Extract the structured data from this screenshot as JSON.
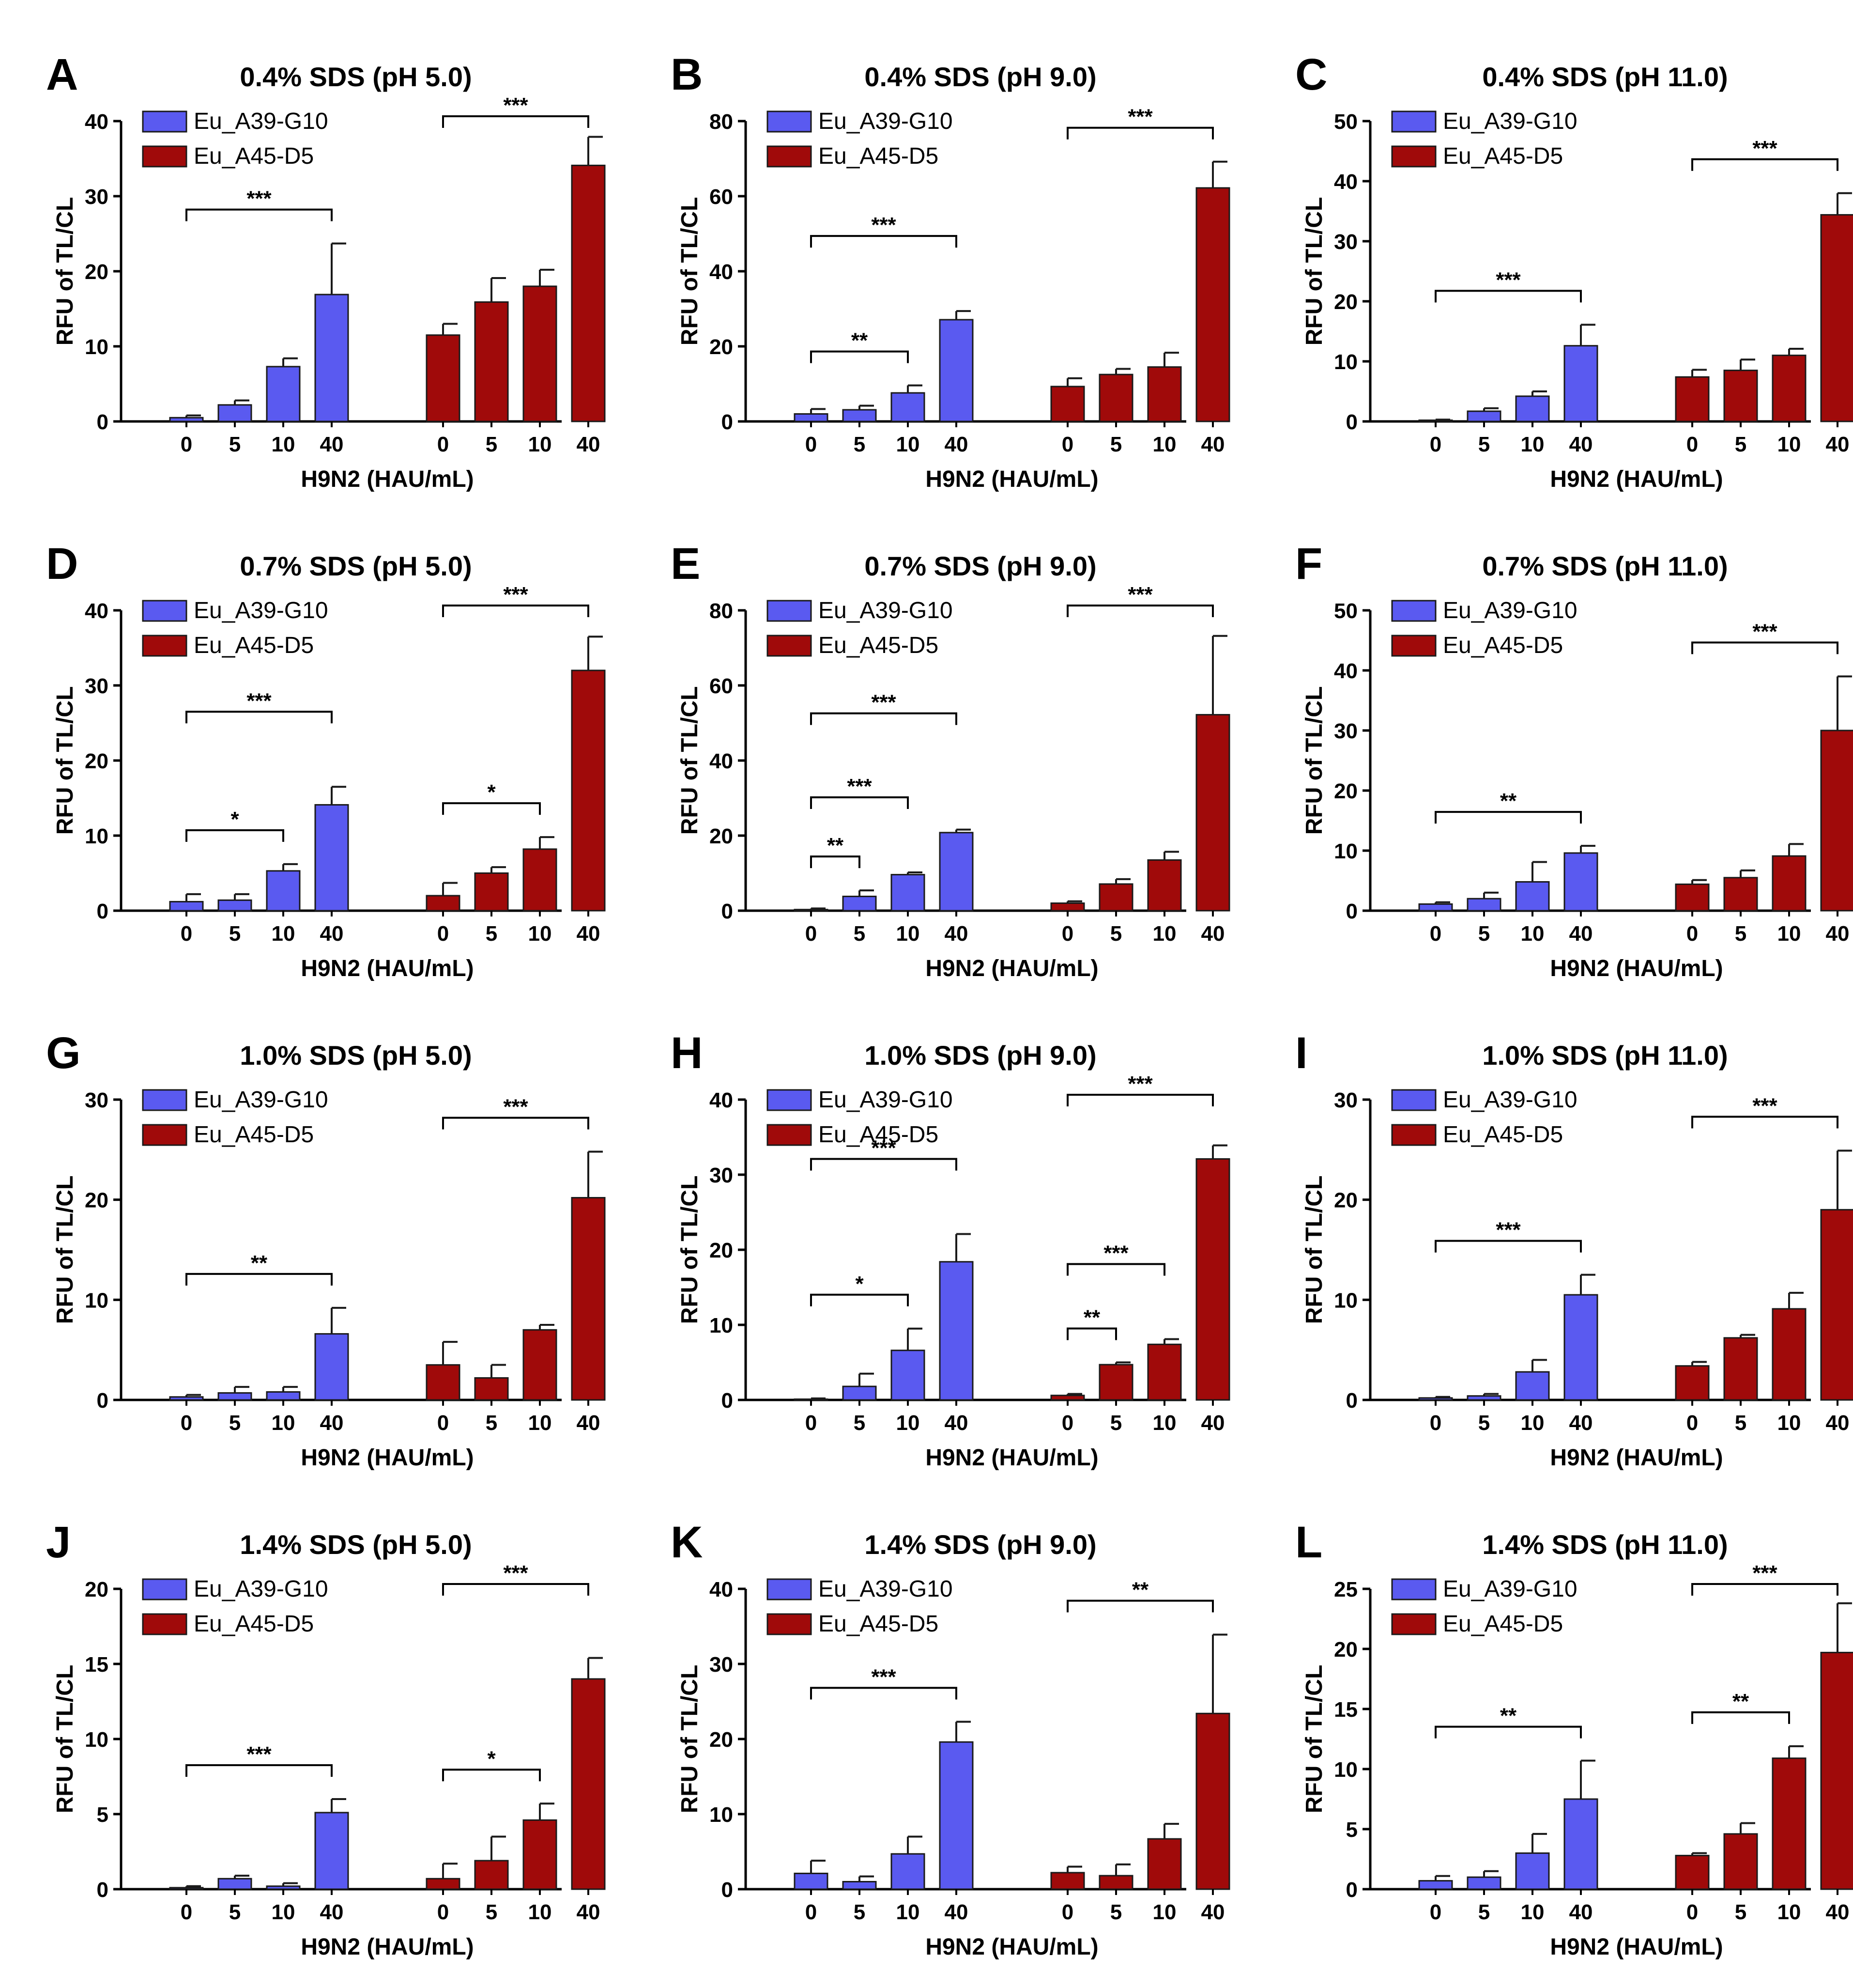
{
  "colors": {
    "eu_a39": "#5a5af0",
    "eu_a45": "#a00a0a",
    "axis": "#000000",
    "edge": "#1a1a1a"
  },
  "chart_data": [
    {
      "type": "bar",
      "panel": "A",
      "title": "0.4% SDS (pH 5.0)",
      "xlabel": "H9N2 (HAU/mL)",
      "ylabel": "RFU of TL/CL",
      "ylim": [
        0,
        40
      ],
      "yticks": [
        "0",
        "10",
        "20",
        "30",
        "40"
      ],
      "categories": [
        "0",
        "5",
        "10",
        "40"
      ],
      "series": [
        {
          "name": "Eu_A39-G10",
          "color": "#5a5af0",
          "values": [
            0.5,
            2.2,
            7.3,
            16.9
          ],
          "errors": [
            0.3,
            0.6,
            1.1,
            6.8
          ]
        },
        {
          "name": "Eu_A45-D5",
          "color": "#a00a0a",
          "values": [
            11.5,
            15.9,
            18.0,
            34.1
          ],
          "errors": [
            1.5,
            3.2,
            2.2,
            3.8
          ]
        }
      ],
      "significance": [
        {
          "series": 0,
          "from": 0,
          "to": 3,
          "label": "***"
        },
        {
          "series": 1,
          "from": 0,
          "to": 3,
          "label": "***"
        }
      ]
    },
    {
      "type": "bar",
      "panel": "B",
      "title": "0.4% SDS (pH 9.0)",
      "xlabel": "H9N2 (HAU/mL)",
      "ylabel": "RFU of TL/CL",
      "ylim": [
        0,
        80
      ],
      "yticks": [
        "0",
        "20",
        "40",
        "60",
        "80"
      ],
      "categories": [
        "0",
        "5",
        "10",
        "40"
      ],
      "series": [
        {
          "name": "Eu_A39-G10",
          "color": "#5a5af0",
          "values": [
            2.0,
            3.1,
            7.6,
            27.1
          ],
          "errors": [
            1.3,
            1.1,
            2.0,
            2.3
          ]
        },
        {
          "name": "Eu_A45-D5",
          "color": "#a00a0a",
          "values": [
            9.3,
            12.5,
            14.5,
            62.2
          ],
          "errors": [
            2.2,
            1.5,
            3.8,
            7.0
          ]
        }
      ],
      "significance": [
        {
          "series": 0,
          "from": 0,
          "to": 2,
          "label": "**"
        },
        {
          "series": 0,
          "from": 0,
          "to": 3,
          "label": "***"
        },
        {
          "series": 1,
          "from": 0,
          "to": 3,
          "label": "***"
        }
      ]
    },
    {
      "type": "bar",
      "panel": "C",
      "title": "0.4% SDS (pH 11.0)",
      "xlabel": "H9N2 (HAU/mL)",
      "ylabel": "RFU of TL/CL",
      "ylim": [
        0,
        50
      ],
      "yticks": [
        "0",
        "10",
        "20",
        "30",
        "40",
        "50"
      ],
      "categories": [
        "0",
        "5",
        "10",
        "40"
      ],
      "series": [
        {
          "name": "Eu_A39-G10",
          "color": "#5a5af0",
          "values": [
            0.2,
            1.7,
            4.2,
            12.6
          ],
          "errors": [
            0.1,
            0.5,
            0.8,
            3.5
          ]
        },
        {
          "name": "Eu_A45-D5",
          "color": "#a00a0a",
          "values": [
            7.4,
            8.5,
            11.0,
            34.4
          ],
          "errors": [
            1.2,
            1.8,
            1.1,
            3.6
          ]
        }
      ],
      "significance": [
        {
          "series": 0,
          "from": 0,
          "to": 3,
          "label": "***"
        },
        {
          "series": 1,
          "from": 0,
          "to": 3,
          "label": "***"
        }
      ]
    },
    {
      "type": "bar",
      "panel": "D",
      "title": "0.7% SDS (pH 5.0)",
      "xlabel": "H9N2 (HAU/mL)",
      "ylabel": "RFU of TL/CL",
      "ylim": [
        0,
        40
      ],
      "yticks": [
        "0",
        "10",
        "20",
        "30",
        "40"
      ],
      "categories": [
        "0",
        "5",
        "10",
        "40"
      ],
      "series": [
        {
          "name": "Eu_A39-G10",
          "color": "#5a5af0",
          "values": [
            1.2,
            1.4,
            5.3,
            14.1
          ],
          "errors": [
            1.0,
            0.8,
            0.9,
            2.4
          ]
        },
        {
          "name": "Eu_A45-D5",
          "color": "#a00a0a",
          "values": [
            2.0,
            5.0,
            8.2,
            32.0
          ],
          "errors": [
            1.7,
            0.8,
            1.6,
            4.5
          ]
        }
      ],
      "significance": [
        {
          "series": 0,
          "from": 0,
          "to": 2,
          "label": "*"
        },
        {
          "series": 0,
          "from": 0,
          "to": 3,
          "label": "***"
        },
        {
          "series": 1,
          "from": 0,
          "to": 2,
          "label": "*"
        },
        {
          "series": 1,
          "from": 0,
          "to": 3,
          "label": "***"
        }
      ]
    },
    {
      "type": "bar",
      "panel": "E",
      "title": "0.7% SDS (pH 9.0)",
      "xlabel": "H9N2 (HAU/mL)",
      "ylabel": "RFU of TL/CL",
      "ylim": [
        0,
        80
      ],
      "yticks": [
        "0",
        "20",
        "40",
        "60",
        "80"
      ],
      "categories": [
        "0",
        "5",
        "10",
        "40"
      ],
      "series": [
        {
          "name": "Eu_A39-G10",
          "color": "#5a5af0",
          "values": [
            0.3,
            3.8,
            9.6,
            20.8
          ],
          "errors": [
            0.3,
            1.6,
            0.6,
            0.8
          ]
        },
        {
          "name": "Eu_A45-D5",
          "color": "#a00a0a",
          "values": [
            2.0,
            7.1,
            13.5,
            52.2
          ],
          "errors": [
            0.5,
            1.3,
            2.2,
            21.0
          ]
        }
      ],
      "significance": [
        {
          "series": 0,
          "from": 0,
          "to": 1,
          "label": "**"
        },
        {
          "series": 0,
          "from": 0,
          "to": 2,
          "label": "***"
        },
        {
          "series": 0,
          "from": 0,
          "to": 3,
          "label": "***"
        },
        {
          "series": 1,
          "from": 0,
          "to": 3,
          "label": "***"
        }
      ]
    },
    {
      "type": "bar",
      "panel": "F",
      "title": "0.7% SDS (pH 11.0)",
      "xlabel": "H9N2 (HAU/mL)",
      "ylabel": "RFU of TL/CL",
      "ylim": [
        0,
        50
      ],
      "yticks": [
        "0",
        "10",
        "20",
        "30",
        "40",
        "50"
      ],
      "categories": [
        "0",
        "5",
        "10",
        "40"
      ],
      "series": [
        {
          "name": "Eu_A39-G10",
          "color": "#5a5af0",
          "values": [
            1.1,
            2.0,
            4.8,
            9.6
          ],
          "errors": [
            0.3,
            1.0,
            3.3,
            1.2
          ]
        },
        {
          "name": "Eu_A45-D5",
          "color": "#a00a0a",
          "values": [
            4.4,
            5.5,
            9.1,
            30.0
          ],
          "errors": [
            0.7,
            1.2,
            2.0,
            9.0
          ]
        }
      ],
      "significance": [
        {
          "series": 0,
          "from": 0,
          "to": 3,
          "label": "**"
        },
        {
          "series": 1,
          "from": 0,
          "to": 3,
          "label": "***"
        }
      ]
    },
    {
      "type": "bar",
      "panel": "G",
      "title": "1.0% SDS (pH 5.0)",
      "xlabel": "H9N2 (HAU/mL)",
      "ylabel": "RFU of TL/CL",
      "ylim": [
        0,
        30
      ],
      "yticks": [
        "0",
        "10",
        "20",
        "30"
      ],
      "categories": [
        "0",
        "5",
        "10",
        "40"
      ],
      "series": [
        {
          "name": "Eu_A39-G10",
          "color": "#5a5af0",
          "values": [
            0.3,
            0.7,
            0.8,
            6.6
          ],
          "errors": [
            0.2,
            0.6,
            0.5,
            2.6
          ]
        },
        {
          "name": "Eu_A45-D5",
          "color": "#a00a0a",
          "values": [
            3.5,
            2.2,
            7.0,
            20.2
          ],
          "errors": [
            2.3,
            1.3,
            0.5,
            4.6
          ]
        }
      ],
      "significance": [
        {
          "series": 0,
          "from": 0,
          "to": 3,
          "label": "**"
        },
        {
          "series": 1,
          "from": 0,
          "to": 3,
          "label": "***"
        }
      ]
    },
    {
      "type": "bar",
      "panel": "H",
      "title": "1.0% SDS (pH 9.0)",
      "xlabel": "H9N2 (HAU/mL)",
      "ylabel": "RFU of TL/CL",
      "ylim": [
        0,
        40
      ],
      "yticks": [
        "0",
        "10",
        "20",
        "30",
        "40"
      ],
      "categories": [
        "0",
        "5",
        "10",
        "40"
      ],
      "series": [
        {
          "name": "Eu_A39-G10",
          "color": "#5a5af0",
          "values": [
            0.1,
            1.8,
            6.6,
            18.4
          ],
          "errors": [
            0.1,
            1.7,
            2.9,
            3.7
          ]
        },
        {
          "name": "Eu_A45-D5",
          "color": "#a00a0a",
          "values": [
            0.6,
            4.7,
            7.4,
            32.1
          ],
          "errors": [
            0.2,
            0.3,
            0.7,
            1.8
          ]
        }
      ],
      "significance": [
        {
          "series": 0,
          "from": 0,
          "to": 2,
          "label": "*"
        },
        {
          "series": 0,
          "from": 0,
          "to": 3,
          "label": "***"
        },
        {
          "series": 1,
          "from": 0,
          "to": 1,
          "label": "**"
        },
        {
          "series": 1,
          "from": 0,
          "to": 2,
          "label": "***"
        },
        {
          "series": 1,
          "from": 0,
          "to": 3,
          "label": "***"
        }
      ]
    },
    {
      "type": "bar",
      "panel": "I",
      "title": "1.0% SDS (pH 11.0)",
      "xlabel": "H9N2 (HAU/mL)",
      "ylabel": "RFU of TL/CL",
      "ylim": [
        0,
        30
      ],
      "yticks": [
        "0",
        "10",
        "20",
        "30"
      ],
      "categories": [
        "0",
        "5",
        "10",
        "40"
      ],
      "series": [
        {
          "name": "Eu_A39-G10",
          "color": "#5a5af0",
          "values": [
            0.2,
            0.4,
            2.8,
            10.5
          ],
          "errors": [
            0.1,
            0.2,
            1.2,
            2.0
          ]
        },
        {
          "name": "Eu_A45-D5",
          "color": "#a00a0a",
          "values": [
            3.4,
            6.2,
            9.1,
            19.0
          ],
          "errors": [
            0.4,
            0.3,
            1.6,
            5.9
          ]
        }
      ],
      "significance": [
        {
          "series": 0,
          "from": 0,
          "to": 3,
          "label": "***"
        },
        {
          "series": 1,
          "from": 0,
          "to": 3,
          "label": "***"
        }
      ]
    },
    {
      "type": "bar",
      "panel": "J",
      "title": "1.4% SDS (pH 5.0)",
      "xlabel": "H9N2 (HAU/mL)",
      "ylabel": "RFU of TL/CL",
      "ylim": [
        0,
        20
      ],
      "yticks": [
        "0",
        "5",
        "10",
        "15",
        "20"
      ],
      "categories": [
        "0",
        "5",
        "10",
        "40"
      ],
      "series": [
        {
          "name": "Eu_A39-G10",
          "color": "#5a5af0",
          "values": [
            0.1,
            0.7,
            0.2,
            5.1
          ],
          "errors": [
            0.1,
            0.2,
            0.2,
            0.9
          ]
        },
        {
          "name": "Eu_A45-D5",
          "color": "#a00a0a",
          "values": [
            0.7,
            1.9,
            4.6,
            14.0
          ],
          "errors": [
            1.0,
            1.6,
            1.1,
            1.4
          ]
        }
      ],
      "significance": [
        {
          "series": 0,
          "from": 0,
          "to": 3,
          "label": "***"
        },
        {
          "series": 1,
          "from": 0,
          "to": 2,
          "label": "*"
        },
        {
          "series": 1,
          "from": 0,
          "to": 3,
          "label": "***"
        }
      ]
    },
    {
      "type": "bar",
      "panel": "K",
      "title": "1.4% SDS (pH 9.0)",
      "xlabel": "H9N2 (HAU/mL)",
      "ylabel": "RFU of TL/CL",
      "ylim": [
        0,
        40
      ],
      "yticks": [
        "0",
        "10",
        "20",
        "30",
        "40"
      ],
      "categories": [
        "0",
        "5",
        "10",
        "40"
      ],
      "series": [
        {
          "name": "Eu_A39-G10",
          "color": "#5a5af0",
          "values": [
            2.1,
            1.0,
            4.7,
            19.6
          ],
          "errors": [
            1.7,
            0.7,
            2.3,
            2.7
          ]
        },
        {
          "name": "Eu_A45-D5",
          "color": "#a00a0a",
          "values": [
            2.2,
            1.8,
            6.7,
            23.4
          ],
          "errors": [
            0.8,
            1.5,
            2.0,
            10.5
          ]
        }
      ],
      "significance": [
        {
          "series": 0,
          "from": 0,
          "to": 3,
          "label": "***"
        },
        {
          "series": 1,
          "from": 0,
          "to": 3,
          "label": "**"
        }
      ]
    },
    {
      "type": "bar",
      "panel": "L",
      "title": "1.4% SDS (pH 11.0)",
      "xlabel": "H9N2 (HAU/mL)",
      "ylabel": "RFU of TL/CL",
      "ylim": [
        0,
        25
      ],
      "yticks": [
        "0",
        "5",
        "10",
        "15",
        "20",
        "25"
      ],
      "categories": [
        "0",
        "5",
        "10",
        "40"
      ],
      "series": [
        {
          "name": "Eu_A39-G10",
          "color": "#5a5af0",
          "values": [
            0.7,
            1.0,
            3.0,
            7.5
          ],
          "errors": [
            0.4,
            0.5,
            1.6,
            3.2
          ]
        },
        {
          "name": "Eu_A45-D5",
          "color": "#a00a0a",
          "values": [
            2.8,
            4.6,
            10.9,
            19.7
          ],
          "errors": [
            0.2,
            0.9,
            1.0,
            4.1
          ]
        }
      ],
      "significance": [
        {
          "series": 0,
          "from": 0,
          "to": 3,
          "label": "**"
        },
        {
          "series": 1,
          "from": 0,
          "to": 2,
          "label": "**"
        },
        {
          "series": 1,
          "from": 0,
          "to": 3,
          "label": "***"
        }
      ]
    }
  ]
}
